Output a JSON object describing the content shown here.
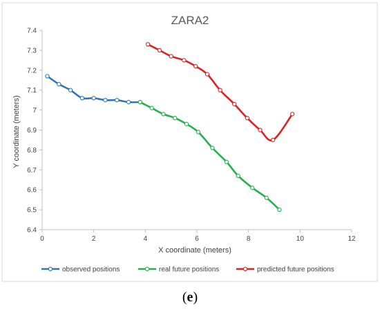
{
  "chart_data": {
    "type": "line",
    "title": "ZARA2",
    "xlabel": "X coordinate (meters)",
    "ylabel": "Y coordinate (meters)",
    "xlim": [
      0,
      12
    ],
    "ylim": [
      6.4,
      7.4
    ],
    "x_ticks": [
      "0",
      "2",
      "4",
      "6",
      "8",
      "10",
      "12"
    ],
    "y_ticks": [
      "6.4",
      "6.5",
      "6.6",
      "6.7",
      "6.8",
      "6.9",
      "7",
      "7.1",
      "7.2",
      "7.3",
      "7.4"
    ],
    "grid": false,
    "legend_position": "bottom",
    "series": [
      {
        "name": "observed positions",
        "color": "#2e75b6",
        "points": [
          [
            0.2,
            7.17
          ],
          [
            0.65,
            7.13
          ],
          [
            1.1,
            7.1
          ],
          [
            1.55,
            7.06
          ],
          [
            2.0,
            7.06
          ],
          [
            2.45,
            7.05
          ],
          [
            2.9,
            7.05
          ],
          [
            3.35,
            7.04
          ],
          [
            3.8,
            7.04
          ]
        ]
      },
      {
        "name": "real future positions",
        "color": "#22b14c",
        "points": [
          [
            3.8,
            7.04
          ],
          [
            4.25,
            7.01
          ],
          [
            4.7,
            6.98
          ],
          [
            5.15,
            6.96
          ],
          [
            5.6,
            6.93
          ],
          [
            6.05,
            6.89
          ],
          [
            6.6,
            6.81
          ],
          [
            7.15,
            6.74
          ],
          [
            7.6,
            6.67
          ],
          [
            8.15,
            6.61
          ],
          [
            8.7,
            6.56
          ],
          [
            9.2,
            6.5
          ]
        ]
      },
      {
        "name": "predicted future positions",
        "color": "#e02020",
        "points": [
          [
            4.1,
            7.33
          ],
          [
            4.55,
            7.3
          ],
          [
            5.0,
            7.27
          ],
          [
            5.5,
            7.25
          ],
          [
            5.95,
            7.22
          ],
          [
            6.4,
            7.18
          ],
          [
            6.9,
            7.1
          ],
          [
            7.45,
            7.03
          ],
          [
            7.95,
            6.96
          ],
          [
            8.45,
            6.9
          ],
          [
            8.95,
            6.85
          ],
          [
            9.7,
            6.98
          ]
        ]
      }
    ]
  },
  "caption": {
    "open": "(",
    "letter": "e",
    "close": ")"
  }
}
